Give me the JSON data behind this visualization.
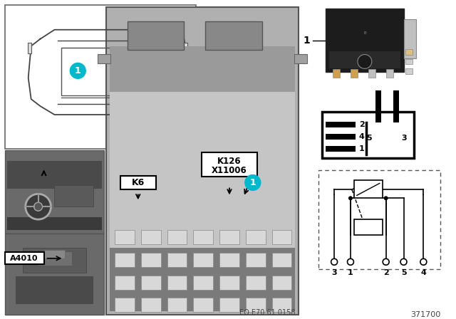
{
  "bg_color": "#ffffff",
  "teal_color": "#00b8cc",
  "label_k6": "K6",
  "label_k126": "K126",
  "label_x11006": "X11006",
  "label_a4010": "A4010",
  "label_eo": "EO E70 61 0158",
  "label_part": "371700",
  "pin_connector_labels": [
    "2",
    "4",
    "5",
    "3",
    "1"
  ],
  "terminal_labels": [
    "3",
    "1",
    "2",
    "5",
    "4"
  ]
}
